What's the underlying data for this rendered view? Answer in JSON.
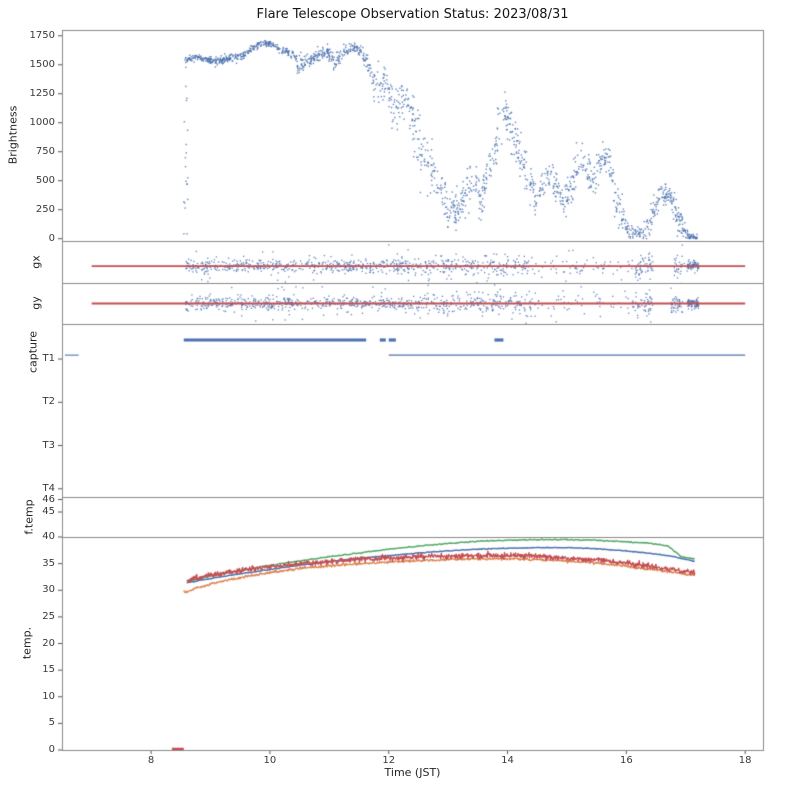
{
  "figure": {
    "title": "Flare Telescope Observation Status: 2023/08/31",
    "xlabel": "Time (JST)",
    "xlim": [
      6.5,
      18.3
    ],
    "xticks": [
      8,
      10,
      12,
      14,
      16,
      18
    ],
    "background": "#ffffff",
    "spine_color": "#8a8a8a",
    "tick_color": "#555555",
    "accent_blue": "#4c72b0",
    "accent_red": "#c44e52",
    "accent_green": "#55a868",
    "accent_orange": "#dd8452"
  },
  "chart_data": [
    {
      "id": "brightness",
      "type": "scatter",
      "ylabel": "Brightness",
      "ylim": [
        -20,
        1800
      ],
      "yticks": [
        0,
        250,
        500,
        750,
        1000,
        1250,
        1500,
        1750
      ],
      "series": [
        {
          "name": "brightness-counts",
          "color": "#4c72b0",
          "marker_px": 1.4,
          "density_per_hour": 195,
          "trend": [
            [
              8.57,
              1550,
              14
            ],
            [
              8.75,
              1565,
              12
            ],
            [
              8.95,
              1550,
              14
            ],
            [
              9.1,
              1520,
              16
            ],
            [
              9.25,
              1545,
              14
            ],
            [
              9.45,
              1565,
              16
            ],
            [
              9.6,
              1600,
              18
            ],
            [
              9.75,
              1655,
              16
            ],
            [
              9.9,
              1690,
              14
            ],
            [
              10.05,
              1670,
              16
            ],
            [
              10.2,
              1625,
              16
            ],
            [
              10.35,
              1600,
              18
            ],
            [
              10.5,
              1495,
              45
            ],
            [
              10.65,
              1530,
              35
            ],
            [
              10.8,
              1585,
              25
            ],
            [
              10.95,
              1615,
              22
            ],
            [
              11.1,
              1530,
              35
            ],
            [
              11.25,
              1615,
              25
            ],
            [
              11.4,
              1650,
              20
            ],
            [
              11.55,
              1605,
              28
            ],
            [
              11.65,
              1495,
              60
            ],
            [
              11.75,
              1355,
              85
            ],
            [
              11.85,
              1315,
              75
            ],
            [
              11.95,
              1355,
              65
            ],
            [
              12.05,
              1210,
              95
            ],
            [
              12.15,
              1115,
              95
            ],
            [
              12.3,
              1230,
              70
            ],
            [
              12.45,
              930,
              150
            ],
            [
              12.6,
              690,
              130
            ],
            [
              12.75,
              590,
              110
            ],
            [
              12.9,
              400,
              100
            ],
            [
              13.0,
              235,
              80
            ],
            [
              13.15,
              255,
              85
            ],
            [
              13.3,
              410,
              95
            ],
            [
              13.45,
              520,
              85
            ],
            [
              13.55,
              330,
              85
            ],
            [
              13.7,
              610,
              110
            ],
            [
              13.85,
              950,
              110
            ],
            [
              13.95,
              1105,
              75
            ],
            [
              14.05,
              985,
              95
            ],
            [
              14.2,
              760,
              95
            ],
            [
              14.35,
              525,
              85
            ],
            [
              14.5,
              355,
              70
            ],
            [
              14.65,
              525,
              70
            ],
            [
              14.8,
              435,
              70
            ],
            [
              14.95,
              300,
              60
            ],
            [
              15.1,
              480,
              80
            ],
            [
              15.25,
              685,
              70
            ],
            [
              15.4,
              470,
              80
            ],
            [
              15.55,
              645,
              80
            ],
            [
              15.7,
              705,
              80
            ],
            [
              15.85,
              310,
              95
            ],
            [
              16.0,
              85,
              45
            ],
            [
              16.15,
              45,
              28
            ],
            [
              16.3,
              65,
              45
            ],
            [
              16.45,
              225,
              70
            ],
            [
              16.6,
              385,
              55
            ],
            [
              16.72,
              360,
              50
            ],
            [
              16.85,
              230,
              70
            ],
            [
              16.95,
              90,
              50
            ],
            [
              17.05,
              20,
              14
            ],
            [
              17.2,
              12,
              9
            ]
          ],
          "burst_columns": [
            {
              "t0": 8.55,
              "t1": 8.62,
              "n": 20,
              "mean": 760,
              "sigma": 430
            }
          ]
        }
      ]
    },
    {
      "id": "gx",
      "type": "guider-scatter",
      "ylabel": "gx",
      "ylim": [
        -1,
        1
      ],
      "yticks": [],
      "center": -0.2,
      "hline": {
        "y": -0.2,
        "t0": 7.0,
        "t1": 18.0,
        "color": "#c44e52",
        "width": 1.8
      },
      "series": [
        {
          "name": "gx-guide-error",
          "color": "#4c72b0",
          "marker_px": 1.3,
          "segments": [
            {
              "t0": 8.58,
              "t1": 12.6,
              "n": 540,
              "sigma": 0.16,
              "out_frac": 0.1,
              "out_sigma": 0.5
            },
            {
              "t0": 12.6,
              "t1": 14.35,
              "n": 210,
              "sigma": 0.22,
              "out_frac": 0.16,
              "out_sigma": 0.55
            },
            {
              "t0": 14.35,
              "t1": 16.1,
              "n": 70,
              "sigma": 0.26,
              "out_frac": 0.2,
              "out_sigma": 0.6
            },
            {
              "t0": 16.15,
              "t1": 16.45,
              "n": 60,
              "sigma": 0.22,
              "out_frac": 0.15,
              "out_sigma": 0.5
            },
            {
              "t0": 16.8,
              "t1": 16.98,
              "n": 28,
              "sigma": 0.3,
              "out_frac": 0.2,
              "out_sigma": 0.6
            },
            {
              "t0": 17.02,
              "t1": 17.22,
              "n": 80,
              "sigma": 0.1,
              "out_frac": 0.05,
              "out_sigma": 0.3
            }
          ]
        }
      ]
    },
    {
      "id": "gy",
      "type": "guider-scatter",
      "ylabel": "gy",
      "ylim": [
        -1,
        1
      ],
      "yticks": [],
      "center": 0,
      "hline": {
        "y": 0,
        "t0": 7.0,
        "t1": 18.0,
        "color": "#c44e52",
        "width": 1.8
      },
      "series": [
        {
          "name": "gy-guide-error",
          "color": "#4c72b0",
          "marker_px": 1.3,
          "segments": [
            {
              "t0": 8.58,
              "t1": 12.5,
              "n": 540,
              "sigma": 0.16,
              "out_frac": 0.1,
              "out_sigma": 0.5
            },
            {
              "t0": 12.5,
              "t1": 14.35,
              "n": 220,
              "sigma": 0.24,
              "out_frac": 0.18,
              "out_sigma": 0.55
            },
            {
              "t0": 14.35,
              "t1": 16.05,
              "n": 65,
              "sigma": 0.28,
              "out_frac": 0.2,
              "out_sigma": 0.6
            },
            {
              "t0": 16.1,
              "t1": 16.45,
              "n": 55,
              "sigma": 0.22,
              "out_frac": 0.15,
              "out_sigma": 0.5
            },
            {
              "t0": 16.75,
              "t1": 16.95,
              "n": 45,
              "sigma": 0.28,
              "out_frac": 0.2,
              "out_sigma": 0.6
            },
            {
              "t0": 17.02,
              "t1": 17.22,
              "n": 85,
              "sigma": 0.12,
              "out_frac": 0.05,
              "out_sigma": 0.3
            }
          ]
        }
      ]
    },
    {
      "id": "capture",
      "type": "state-lines",
      "ylabel": "capture",
      "ylim": [
        0.19,
        4.19
      ],
      "invert": true,
      "yticks": [
        1,
        2,
        3,
        4
      ],
      "ytick_labels": [
        "T1",
        "T2",
        "T3",
        "T4"
      ],
      "series": [
        {
          "name": "capture-state-thick",
          "color": "#4c72b0",
          "width": 3.2,
          "level": 0.56,
          "spans": [
            [
              8.55,
              11.62
            ],
            [
              11.85,
              11.95
            ],
            [
              12.0,
              12.12
            ],
            [
              13.78,
              13.93
            ]
          ]
        },
        {
          "name": "capture-state-thin",
          "color": "#4c72b0",
          "width": 1.1,
          "level": 0.91,
          "spans": [
            [
              6.55,
              6.78
            ],
            [
              12.0,
              18.0
            ]
          ]
        }
      ]
    },
    {
      "id": "ftemp",
      "type": "line",
      "ylabel": "f.temp",
      "ylim": [
        43.0,
        46.2
      ],
      "yticks": [
        45,
        46
      ],
      "series": []
    },
    {
      "id": "temp",
      "type": "line",
      "ylabel": "temp.",
      "ylim": [
        0,
        40
      ],
      "yticks": [
        0,
        5,
        10,
        15,
        20,
        25,
        30,
        35,
        40
      ],
      "series": [
        {
          "name": "temp-blue",
          "color": "#4c72b0",
          "width": 1.5,
          "noise": 0.03,
          "step": 0.02,
          "points": [
            [
              8.6,
              31.4
            ],
            [
              9.0,
              32.2
            ],
            [
              9.5,
              33.1
            ],
            [
              10.0,
              33.9
            ],
            [
              10.5,
              34.7
            ],
            [
              11.0,
              35.4
            ],
            [
              11.5,
              36.0
            ],
            [
              12.0,
              36.5
            ],
            [
              12.5,
              37.0
            ],
            [
              13.0,
              37.4
            ],
            [
              13.5,
              37.7
            ],
            [
              14.0,
              37.9
            ],
            [
              14.5,
              38.0
            ],
            [
              15.0,
              38.0
            ],
            [
              15.5,
              37.8
            ],
            [
              16.0,
              37.4
            ],
            [
              16.5,
              36.8
            ],
            [
              16.8,
              36.3
            ],
            [
              17.0,
              35.8
            ],
            [
              17.15,
              35.4
            ]
          ]
        },
        {
          "name": "temp-green",
          "color": "#55a868",
          "width": 1.5,
          "noise": 0.05,
          "step": 0.02,
          "points": [
            [
              8.6,
              31.6
            ],
            [
              9.0,
              32.7
            ],
            [
              9.5,
              33.7
            ],
            [
              10.0,
              34.7
            ],
            [
              10.5,
              35.5
            ],
            [
              11.0,
              36.3
            ],
            [
              11.5,
              37.0
            ],
            [
              12.0,
              37.7
            ],
            [
              12.5,
              38.3
            ],
            [
              13.0,
              38.8
            ],
            [
              13.5,
              39.2
            ],
            [
              14.0,
              39.4
            ],
            [
              14.5,
              39.5
            ],
            [
              15.0,
              39.5
            ],
            [
              15.5,
              39.4
            ],
            [
              16.0,
              39.1
            ],
            [
              16.3,
              38.9
            ],
            [
              16.5,
              38.7
            ],
            [
              16.7,
              38.3
            ],
            [
              16.8,
              37.4
            ],
            [
              16.9,
              36.5
            ],
            [
              17.0,
              36.1
            ],
            [
              17.15,
              35.9
            ]
          ]
        },
        {
          "name": "temp-orange",
          "color": "#dd8452",
          "width": 1.3,
          "noise": 0.12,
          "step": 0.01,
          "points": [
            [
              8.55,
              29.6
            ],
            [
              9.0,
              31.2
            ],
            [
              9.5,
              32.4
            ],
            [
              10.0,
              33.3
            ],
            [
              10.5,
              34.1
            ],
            [
              11.0,
              34.6
            ],
            [
              11.5,
              35.0
            ],
            [
              12.0,
              35.3
            ],
            [
              12.5,
              35.6
            ],
            [
              13.0,
              35.8
            ],
            [
              13.5,
              35.9
            ],
            [
              14.0,
              35.9
            ],
            [
              14.5,
              35.8
            ],
            [
              15.0,
              35.5
            ],
            [
              15.5,
              35.1
            ],
            [
              16.0,
              34.5
            ],
            [
              16.3,
              34.1
            ],
            [
              16.6,
              33.7
            ],
            [
              16.9,
              33.2
            ],
            [
              17.05,
              32.9
            ],
            [
              17.15,
              33.0
            ]
          ]
        },
        {
          "name": "temp-red",
          "color": "#c44e52",
          "width": 1.3,
          "noise": 0.25,
          "step": 0.008,
          "points": [
            [
              8.6,
              31.9
            ],
            [
              9.0,
              32.9
            ],
            [
              9.5,
              33.7
            ],
            [
              10.0,
              34.4
            ],
            [
              10.5,
              35.0
            ],
            [
              11.0,
              35.4
            ],
            [
              11.5,
              35.8
            ],
            [
              12.0,
              36.1
            ],
            [
              12.5,
              36.3
            ],
            [
              13.0,
              36.4
            ],
            [
              13.5,
              36.5
            ],
            [
              14.0,
              36.5
            ],
            [
              14.5,
              36.4
            ],
            [
              15.0,
              36.1
            ],
            [
              15.5,
              35.7
            ],
            [
              16.0,
              35.2
            ],
            [
              16.3,
              34.7
            ],
            [
              16.6,
              34.2
            ],
            [
              16.9,
              33.7
            ],
            [
              17.05,
              33.4
            ],
            [
              17.15,
              33.3
            ]
          ]
        },
        {
          "name": "temp-zero-marker",
          "color": "#c44e52",
          "width": 2.4,
          "noise": 0,
          "step": 0.05,
          "points": [
            [
              8.35,
              0.2
            ],
            [
              8.55,
              0.2
            ]
          ]
        }
      ]
    }
  ]
}
